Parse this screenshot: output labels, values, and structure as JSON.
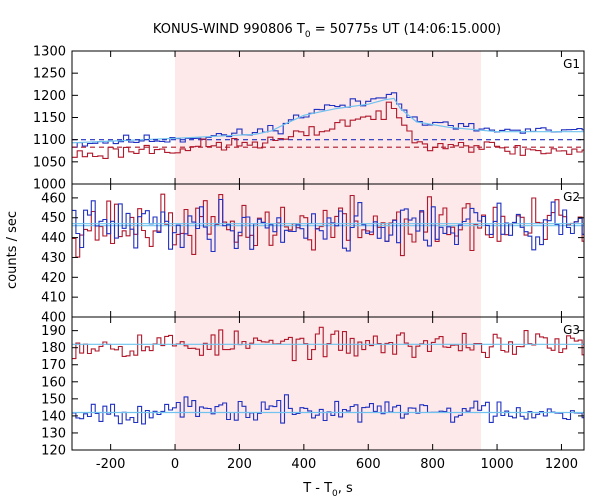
{
  "chart_data": {
    "type": "line",
    "title": "KONUS-WIND 990806 T",
    "title_sub": "0",
    "title_rest": " = 50775s UT (14:06:15.000)",
    "xlabel": "T - T",
    "xlabel_sub": "0",
    "xlabel_rest": ", s",
    "ylabel": "counts / sec",
    "xlim": [
      -320,
      1270
    ],
    "x_ticks": [
      -200,
      0,
      200,
      400,
      600,
      800,
      1000,
      1200
    ],
    "shaded_interval": [
      0,
      950
    ],
    "colors": {
      "shade": "#fde8ea",
      "series_red": "#b0182b",
      "series_blue": "#2030c0",
      "fit": "#6fc3ee"
    },
    "panels": [
      {
        "label": "G1",
        "ylim": [
          1000,
          1300
        ],
        "y_ticks": [
          1000,
          1050,
          1100,
          1150,
          1200,
          1250,
          1300
        ],
        "series": [
          {
            "color": "blue",
            "step": 16,
            "points": [
              [
                -320,
                1090
              ],
              [
                -250,
                1095
              ],
              [
                -150,
                1098
              ],
              [
                -50,
                1100
              ],
              [
                0,
                1103
              ],
              [
                100,
                1108
              ],
              [
                200,
                1112
              ],
              [
                280,
                1120
              ],
              [
                330,
                1130
              ],
              [
                380,
                1150
              ],
              [
                420,
                1160
              ],
              [
                450,
                1170
              ],
              [
                500,
                1175
              ],
              [
                550,
                1180
              ],
              [
                600,
                1185
              ],
              [
                650,
                1200
              ],
              [
                680,
                1215
              ],
              [
                700,
                1185
              ],
              [
                730,
                1150
              ],
              [
                760,
                1140
              ],
              [
                800,
                1135
              ],
              [
                900,
                1128
              ],
              [
                1000,
                1120
              ],
              [
                1100,
                1118
              ],
              [
                1270,
                1118
              ]
            ],
            "noise": 6,
            "seed": 11,
            "fit": [
              [
                -320,
                1093
              ],
              [
                0,
                1103
              ],
              [
                250,
                1112
              ],
              [
                300,
                1120
              ],
              [
                350,
                1138
              ],
              [
                400,
                1155
              ],
              [
                500,
                1170
              ],
              [
                600,
                1180
              ],
              [
                650,
                1190
              ],
              [
                680,
                1193
              ],
              [
                700,
                1170
              ],
              [
                750,
                1140
              ],
              [
                850,
                1128
              ],
              [
                1000,
                1118
              ],
              [
                1270,
                1118
              ]
            ],
            "background": 1100
          },
          {
            "color": "red",
            "step": 16,
            "points": [
              [
                -320,
                1065
              ],
              [
                -250,
                1068
              ],
              [
                -150,
                1075
              ],
              [
                -50,
                1080
              ],
              [
                0,
                1080
              ],
              [
                100,
                1085
              ],
              [
                200,
                1090
              ],
              [
                300,
                1095
              ],
              [
                400,
                1110
              ],
              [
                450,
                1120
              ],
              [
                500,
                1135
              ],
              [
                550,
                1145
              ],
              [
                600,
                1150
              ],
              [
                650,
                1160
              ],
              [
                680,
                1165
              ],
              [
                700,
                1145
              ],
              [
                730,
                1110
              ],
              [
                760,
                1100
              ],
              [
                800,
                1095
              ],
              [
                900,
                1090
              ],
              [
                1000,
                1080
              ],
              [
                1100,
                1075
              ],
              [
                1270,
                1075
              ]
            ],
            "noise": 8,
            "seed": 23,
            "fit": [],
            "background": 1083
          }
        ]
      },
      {
        "label": "G2",
        "ylim": [
          400,
          467
        ],
        "y_ticks": [
          400,
          410,
          420,
          430,
          440,
          450,
          460
        ],
        "series": [
          {
            "color": "red",
            "step": 12,
            "points": [
              [
                -320,
                446
              ],
              [
                1270,
                446
              ]
            ],
            "noise": 7,
            "seed": 37,
            "fit": [
              [
                -320,
                446
              ],
              [
                1270,
                446
              ]
            ],
            "background": null
          },
          {
            "color": "blue",
            "step": 12,
            "points": [
              [
                -320,
                446
              ],
              [
                1270,
                446
              ]
            ],
            "noise": 6,
            "seed": 41,
            "fit": [
              [
                -320,
                447
              ],
              [
                1270,
                447
              ]
            ],
            "background": null
          }
        ]
      },
      {
        "label": "G3",
        "ylim": [
          120,
          198
        ],
        "y_ticks": [
          120,
          130,
          140,
          150,
          160,
          170,
          180,
          190
        ],
        "series": [
          {
            "color": "red",
            "step": 12,
            "points": [
              [
                -320,
                182
              ],
              [
                1270,
                182
              ]
            ],
            "noise": 4,
            "seed": 53,
            "fit": [
              [
                -320,
                182
              ],
              [
                1270,
                182
              ]
            ],
            "background": null
          },
          {
            "color": "blue",
            "step": 12,
            "points": [
              [
                -320,
                143
              ],
              [
                1270,
                143
              ]
            ],
            "noise": 3.5,
            "seed": 67,
            "fit": [
              [
                -320,
                142
              ],
              [
                1270,
                142
              ]
            ],
            "background": null
          }
        ]
      }
    ]
  }
}
